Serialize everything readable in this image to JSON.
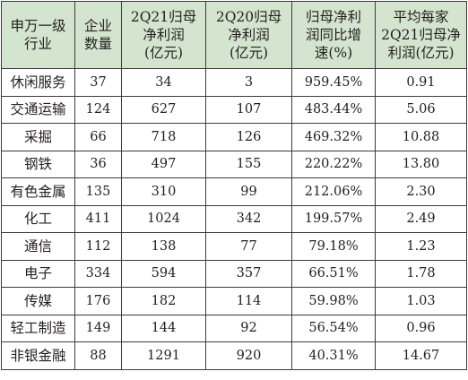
{
  "table": {
    "headers": [
      [
        "申万一级",
        "行业"
      ],
      [
        "企业",
        "数量"
      ],
      [
        "2Q21归母",
        "净利润",
        "(亿元)"
      ],
      [
        "2Q20归母",
        "净利润",
        "(亿元)"
      ],
      [
        "归母净利",
        "润同比增",
        "速(%)"
      ],
      [
        "平均每家",
        "2Q21归母净",
        "利润(亿元)"
      ]
    ],
    "rows": [
      [
        "休闲服务",
        "37",
        "34",
        "3",
        "959.45%",
        "0.91"
      ],
      [
        "交通运输",
        "124",
        "627",
        "107",
        "483.44%",
        "5.06"
      ],
      [
        "采掘",
        "66",
        "718",
        "126",
        "469.32%",
        "10.88"
      ],
      [
        "钢铁",
        "36",
        "497",
        "155",
        "220.22%",
        "13.80"
      ],
      [
        "有色金属",
        "135",
        "310",
        "99",
        "212.06%",
        "2.30"
      ],
      [
        "化工",
        "411",
        "1024",
        "342",
        "199.57%",
        "2.49"
      ],
      [
        "通信",
        "112",
        "138",
        "77",
        "79.18%",
        "1.23"
      ],
      [
        "电子",
        "334",
        "594",
        "357",
        "66.51%",
        "1.78"
      ],
      [
        "传媒",
        "176",
        "182",
        "114",
        "59.98%",
        "1.03"
      ],
      [
        "轻工制造",
        "149",
        "144",
        "92",
        "56.54%",
        "0.96"
      ],
      [
        "非银金融",
        "88",
        "1291",
        "920",
        "40.31%",
        "14.67"
      ]
    ]
  },
  "colors": {
    "header_bg": "#d4e5cf",
    "border": "#3d3a3b",
    "text": "#231f20"
  }
}
